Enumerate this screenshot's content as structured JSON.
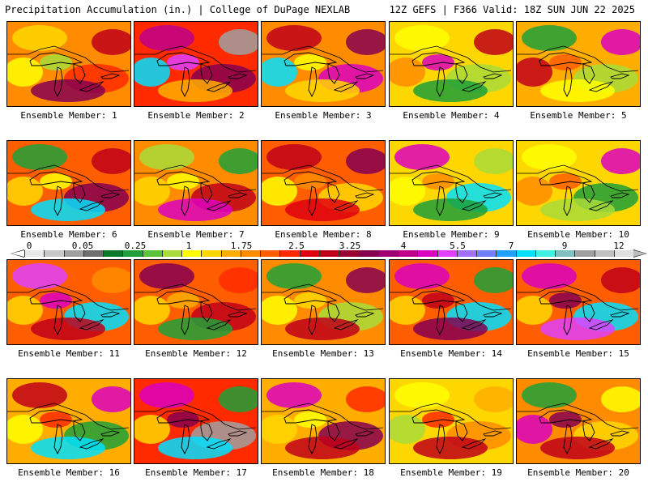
{
  "header": {
    "title_left": "Precipitation Accumulation (in.) | College of DuPage NEXLAB",
    "title_right": "12Z GEFS | F366 Valid: 18Z SUN JUN 22 2025"
  },
  "colorbar": {
    "labels": [
      "0",
      "0.05",
      "0.25",
      "1",
      "1.75",
      "2.5",
      "3.25",
      "4",
      "5.5",
      "7",
      "9",
      "12"
    ],
    "colors": [
      "#e8e8e8",
      "#c8c8c8",
      "#a0a0a0",
      "#6e6e6e",
      "#0a7a2a",
      "#1fa038",
      "#5cc43a",
      "#a8dc3a",
      "#ffff00",
      "#ffd700",
      "#ffae00",
      "#ff8c00",
      "#ff5e00",
      "#ff2a00",
      "#e00010",
      "#c0001a",
      "#9a0030",
      "#860050",
      "#a00070",
      "#c0008a",
      "#dc00c0",
      "#e040ff",
      "#a070ff",
      "#6f7fff",
      "#20a0ff",
      "#00e0ff",
      "#40f0e0",
      "#80c0c0",
      "#a0a0a0",
      "#c0c0c0",
      "#e0e0e0"
    ]
  },
  "members": [
    {
      "label": "Ensemble Member: 1",
      "bg": "#ff8c00",
      "blobs": [
        "#ffd700",
        "#ff2a00",
        "#860050",
        "#ffff00",
        "#c0001a",
        "#a8dc3a"
      ]
    },
    {
      "label": "Ensemble Member: 2",
      "bg": "#ff2a00",
      "blobs": [
        "#c0008a",
        "#860050",
        "#ffae00",
        "#00e0ff",
        "#a0a0a0",
        "#e040ff"
      ]
    },
    {
      "label": "Ensemble Member: 3",
      "bg": "#ff8c00",
      "blobs": [
        "#c0001a",
        "#dc00c0",
        "#ffd700",
        "#00e0ff",
        "#860050",
        "#ffff00"
      ]
    },
    {
      "label": "Ensemble Member: 4",
      "bg": "#ffd700",
      "blobs": [
        "#ffff00",
        "#a8dc3a",
        "#1fa038",
        "#ff8c00",
        "#c0001a",
        "#dc00c0"
      ]
    },
    {
      "label": "Ensemble Member: 5",
      "bg": "#ffae00",
      "blobs": [
        "#1fa038",
        "#a8dc3a",
        "#ffff00",
        "#c0001a",
        "#dc00c0",
        "#ff5e00"
      ]
    },
    {
      "label": "Ensemble Member: 6",
      "bg": "#ff5e00",
      "blobs": [
        "#1fa038",
        "#860050",
        "#00e0ff",
        "#ffd700",
        "#c0001a",
        "#ffff00"
      ]
    },
    {
      "label": "Ensemble Member: 7",
      "bg": "#ff8c00",
      "blobs": [
        "#a8dc3a",
        "#c0001a",
        "#dc00c0",
        "#ffd700",
        "#1fa038",
        "#ffff00"
      ]
    },
    {
      "label": "Ensemble Member: 8",
      "bg": "#ff5e00",
      "blobs": [
        "#c0001a",
        "#ffd700",
        "#e00010",
        "#ffff00",
        "#860050",
        "#ff8c00"
      ]
    },
    {
      "label": "Ensemble Member: 9",
      "bg": "#ffd700",
      "blobs": [
        "#dc00c0",
        "#00e0ff",
        "#1fa038",
        "#ffff00",
        "#a8dc3a",
        "#ff8c00"
      ]
    },
    {
      "label": "Ensemble Member: 10",
      "bg": "#ffd700",
      "blobs": [
        "#ffff00",
        "#1fa038",
        "#a8dc3a",
        "#ff8c00",
        "#dc00c0",
        "#ff5e00"
      ]
    },
    {
      "label": "Ensemble Member: 11",
      "bg": "#ff5e00",
      "blobs": [
        "#e040ff",
        "#00e0ff",
        "#c0001a",
        "#ffd700",
        "#ff8c00",
        "#dc00c0"
      ]
    },
    {
      "label": "Ensemble Member: 12",
      "bg": "#ff5e00",
      "blobs": [
        "#860050",
        "#c0001a",
        "#1fa038",
        "#ffd700",
        "#ff2a00",
        "#ffae00"
      ]
    },
    {
      "label": "Ensemble Member: 13",
      "bg": "#ff8c00",
      "blobs": [
        "#1fa038",
        "#a8dc3a",
        "#c0001a",
        "#ffff00",
        "#860050",
        "#ffd700"
      ]
    },
    {
      "label": "Ensemble Member: 14",
      "bg": "#ff5e00",
      "blobs": [
        "#dc00c0",
        "#00e0ff",
        "#860050",
        "#ffd700",
        "#1fa038",
        "#c0001a"
      ]
    },
    {
      "label": "Ensemble Member: 15",
      "bg": "#ff5e00",
      "blobs": [
        "#dc00c0",
        "#00e0ff",
        "#e040ff",
        "#ffd700",
        "#c0001a",
        "#860050"
      ]
    },
    {
      "label": "Ensemble Member: 16",
      "bg": "#ffae00",
      "blobs": [
        "#c0001a",
        "#1fa038",
        "#00e0ff",
        "#ffff00",
        "#dc00c0",
        "#ff2a00"
      ]
    },
    {
      "label": "Ensemble Member: 17",
      "bg": "#ff2a00",
      "blobs": [
        "#dc00c0",
        "#a0a0a0",
        "#00e0ff",
        "#ffd700",
        "#1fa038",
        "#860050"
      ]
    },
    {
      "label": "Ensemble Member: 18",
      "bg": "#ffae00",
      "blobs": [
        "#dc00c0",
        "#860050",
        "#c0001a",
        "#ffd700",
        "#ff2a00",
        "#ffff00"
      ]
    },
    {
      "label": "Ensemble Member: 19",
      "bg": "#ffd700",
      "blobs": [
        "#ffff00",
        "#ff8c00",
        "#c0001a",
        "#a8dc3a",
        "#ffae00",
        "#ff2a00"
      ]
    },
    {
      "label": "Ensemble Member: 20",
      "bg": "#ff8c00",
      "blobs": [
        "#1fa038",
        "#ffd700",
        "#c0001a",
        "#dc00c0",
        "#ffff00",
        "#860050"
      ]
    }
  ]
}
